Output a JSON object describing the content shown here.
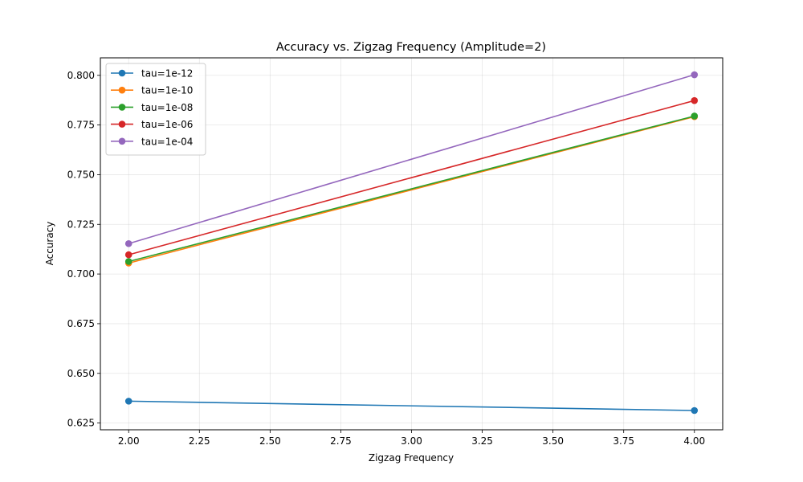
{
  "chart_data": {
    "type": "line",
    "title": "Accuracy vs. Zigzag Frequency (Amplitude=2)",
    "xlabel": "Zigzag Frequency",
    "ylabel": "Accuracy",
    "x": [
      2.0,
      4.0
    ],
    "xlim": [
      1.9,
      4.1
    ],
    "ylim": [
      0.6216,
      0.8088
    ],
    "xticks": [
      2.0,
      2.25,
      2.5,
      2.75,
      3.0,
      3.25,
      3.5,
      3.75,
      4.0
    ],
    "xtick_labels": [
      "2.00",
      "2.25",
      "2.50",
      "2.75",
      "3.00",
      "3.25",
      "3.50",
      "3.75",
      "4.00"
    ],
    "yticks": [
      0.625,
      0.65,
      0.675,
      0.7,
      0.725,
      0.75,
      0.775,
      0.8
    ],
    "ytick_labels": [
      "0.625",
      "0.650",
      "0.675",
      "0.700",
      "0.725",
      "0.750",
      "0.775",
      "0.800"
    ],
    "grid": true,
    "legend_position": "upper-left",
    "series": [
      {
        "name": "tau=1e-12",
        "color": "#1f77b4",
        "values": [
          0.636,
          0.6313
        ]
      },
      {
        "name": "tau=1e-10",
        "color": "#ff7f0e",
        "values": [
          0.7055,
          0.7792
        ]
      },
      {
        "name": "tau=1e-08",
        "color": "#2ca02c",
        "values": [
          0.7063,
          0.7795
        ]
      },
      {
        "name": "tau=1e-06",
        "color": "#d62728",
        "values": [
          0.7097,
          0.7873
        ]
      },
      {
        "name": "tau=1e-04",
        "color": "#9467bd",
        "values": [
          0.7153,
          0.8003
        ]
      }
    ]
  }
}
